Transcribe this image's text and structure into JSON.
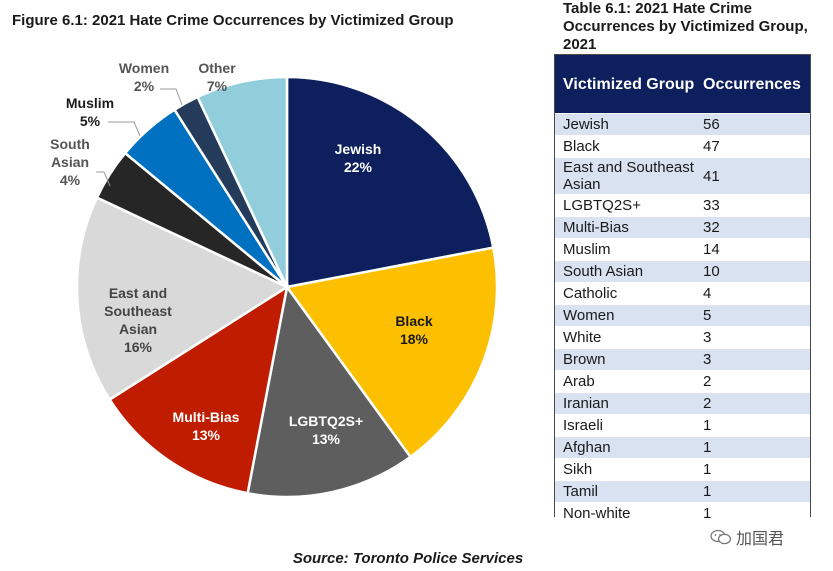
{
  "figure": {
    "title": "Figure 6.1: 2021 Hate Crime Occurrences by Victimized Group"
  },
  "table": {
    "title": "Table 6.1: 2021 Hate Crime Occurrences by Victimized Group, 2021",
    "col_group": "Victimized Group",
    "col_occurrences": "Occurrences",
    "rows": [
      {
        "group": "Jewish",
        "occurrences": "56"
      },
      {
        "group": "Black",
        "occurrences": "47"
      },
      {
        "group": "East and Southeast Asian",
        "occurrences": "41"
      },
      {
        "group": "LGBTQ2S+",
        "occurrences": "33"
      },
      {
        "group": "Multi-Bias",
        "occurrences": "32"
      },
      {
        "group": "Muslim",
        "occurrences": "14"
      },
      {
        "group": "South Asian",
        "occurrences": "10"
      },
      {
        "group": "Catholic",
        "occurrences": "4"
      },
      {
        "group": "Women",
        "occurrences": "5"
      },
      {
        "group": "White",
        "occurrences": "3"
      },
      {
        "group": "Brown",
        "occurrences": "3"
      },
      {
        "group": "Arab",
        "occurrences": "2"
      },
      {
        "group": "Iranian",
        "occurrences": "2"
      },
      {
        "group": "Israeli",
        "occurrences": "1"
      },
      {
        "group": "Afghan",
        "occurrences": "1"
      },
      {
        "group": "Sikh",
        "occurrences": "1"
      },
      {
        "group": "Tamil",
        "occurrences": "1"
      },
      {
        "group": "Non-white",
        "occurrences": "1"
      }
    ]
  },
  "source": "Source: Toronto Police Services",
  "watermark": "加国君",
  "chart_data": {
    "type": "pie",
    "title": "Figure 6.1: 2021 Hate Crime Occurrences by Victimized Group",
    "slices": [
      {
        "label": "Jewish",
        "label_lines": [
          "Jewish"
        ],
        "value": 22,
        "pct": "22%",
        "color": "#0d1f5c",
        "text_color": "#ffffff",
        "inside": true
      },
      {
        "label": "Black",
        "label_lines": [
          "Black"
        ],
        "value": 18,
        "pct": "18%",
        "color": "#fcc000",
        "text_color": "#1a1a1a",
        "inside": true
      },
      {
        "label": "LGBTQ2S+",
        "label_lines": [
          "LGBTQ2S+"
        ],
        "value": 13,
        "pct": "13%",
        "color": "#5e5e5e",
        "text_color": "#ffffff",
        "inside": true
      },
      {
        "label": "Multi-Bias",
        "label_lines": [
          "Multi-Bias"
        ],
        "value": 13,
        "pct": "13%",
        "color": "#c01c00",
        "text_color": "#ffffff",
        "inside": true
      },
      {
        "label": "East and Southeast Asian",
        "label_lines": [
          "East and",
          "Southeast",
          "Asian"
        ],
        "value": 16,
        "pct": "16%",
        "color": "#d9d9d9",
        "text_color": "#444444",
        "inside": true
      },
      {
        "label": "South Asian",
        "label_lines": [
          "South",
          "Asian"
        ],
        "value": 4,
        "pct": "4%",
        "color": "#262626",
        "text_color": "#555555",
        "inside": false
      },
      {
        "label": "Muslim",
        "label_lines": [
          "Muslim"
        ],
        "value": 5,
        "pct": "5%",
        "color": "#0070c0",
        "text_color": "#1a1a1a",
        "inside": false
      },
      {
        "label": "Women",
        "label_lines": [
          "Women"
        ],
        "value": 2,
        "pct": "2%",
        "color": "#243b5c",
        "text_color": "#555555",
        "inside": false
      },
      {
        "label": "Other",
        "label_lines": [
          "Other"
        ],
        "value": 7,
        "pct": "7%",
        "color": "#92cddc",
        "text_color": "#555555",
        "inside": false
      }
    ]
  }
}
